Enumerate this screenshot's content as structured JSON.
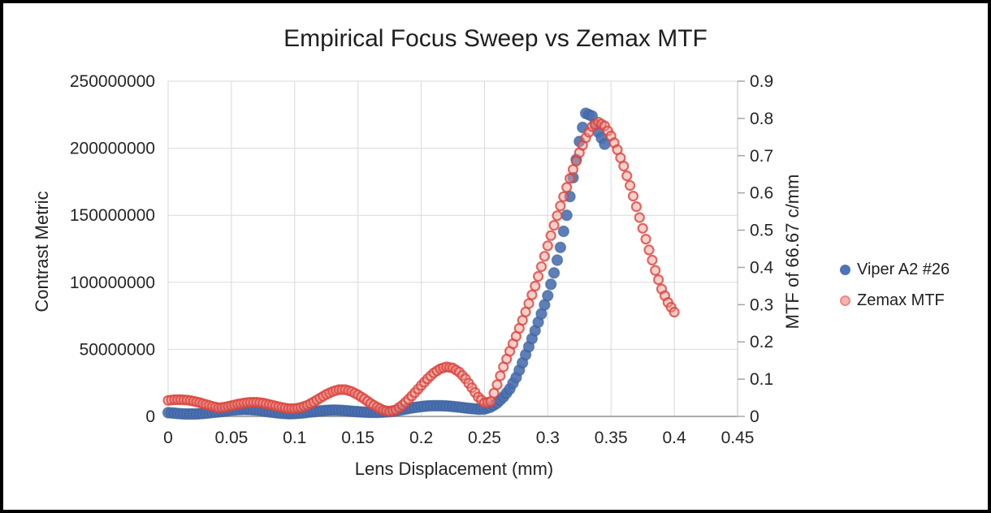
{
  "colors": {
    "background": "#FFFFFF",
    "frame_border": "#000000",
    "gridline": "#D9D9D9",
    "axis_line": "#ABABAB",
    "secondary_axis_line": "#C9C9C9",
    "tick_mark": "#A6A6A6",
    "tick_label": "#262626",
    "title_text": "#1F1F1F"
  },
  "chart_data": {
    "type": "scatter",
    "title": "Empirical Focus Sweep vs Zemax MTF",
    "grid": true,
    "x_axis": {
      "label": "Lens Displacement (mm)",
      "range": [
        0,
        0.45
      ],
      "ticks": [
        {
          "value": 0,
          "label": "0"
        },
        {
          "value": 0.05,
          "label": "0.05"
        },
        {
          "value": 0.1,
          "label": "0.1"
        },
        {
          "value": 0.15,
          "label": "0.15"
        },
        {
          "value": 0.2,
          "label": "0.2"
        },
        {
          "value": 0.25,
          "label": "0.25"
        },
        {
          "value": 0.3,
          "label": "0.3"
        },
        {
          "value": 0.35,
          "label": "0.35"
        },
        {
          "value": 0.4,
          "label": "0.4"
        },
        {
          "value": 0.45,
          "label": "0.45"
        }
      ]
    },
    "y_axis_left": {
      "label": "Contrast Metric",
      "range": [
        0,
        250000000
      ],
      "ticks": [
        {
          "value": 0,
          "label": "0"
        },
        {
          "value": 50000000,
          "label": "50000000"
        },
        {
          "value": 100000000,
          "label": "100000000"
        },
        {
          "value": 150000000,
          "label": "150000000"
        },
        {
          "value": 200000000,
          "label": "200000000"
        },
        {
          "value": 250000000,
          "label": "250000000"
        }
      ]
    },
    "y_axis_right": {
      "label": "MTF of 66.67 c/mm",
      "range": [
        0,
        0.9
      ],
      "ticks": [
        {
          "value": 0,
          "label": "0"
        },
        {
          "value": 0.1,
          "label": "0.1"
        },
        {
          "value": 0.2,
          "label": "0.2"
        },
        {
          "value": 0.3,
          "label": "0.3"
        },
        {
          "value": 0.4,
          "label": "0.4"
        },
        {
          "value": 0.5,
          "label": "0.5"
        },
        {
          "value": 0.6,
          "label": "0.6"
        },
        {
          "value": 0.7,
          "label": "0.7"
        },
        {
          "value": 0.8,
          "label": "0.8"
        },
        {
          "value": 0.9,
          "label": "0.9"
        }
      ]
    },
    "legend": {
      "position": "right",
      "entries": [
        {
          "name": "Viper A2 #26",
          "marker": {
            "fill": "#4C74B6",
            "border": "#4C74B6"
          }
        },
        {
          "name": "Zemax MTF",
          "marker": {
            "fill": "#F5B5B1",
            "border": "#E78B84"
          }
        }
      ]
    },
    "series": [
      {
        "name": "Viper A2 #26",
        "axis": "left",
        "x_start": 0,
        "x_step": 0.005,
        "marker": {
          "r": 6.5,
          "fill": "#4A71B3",
          "fill_opacity": 0.9,
          "stroke": "#3A5B92",
          "stroke_opacity": 0.55,
          "stroke_width": 1.4
        },
        "values": [
          2800000,
          2400000,
          2000000,
          1800000,
          1800000,
          2000000,
          2400000,
          2900000,
          3400000,
          4000000,
          4600000,
          5000000,
          5200000,
          5100000,
          4700000,
          4100000,
          3400000,
          2800000,
          2300000,
          2000000,
          2100000,
          2500000,
          3000000,
          3600000,
          4100000,
          4500000,
          4700000,
          4600000,
          4300000,
          3900000,
          3500000,
          3200000,
          3000000,
          3000000,
          3200000,
          3600000,
          4200000,
          5000000,
          5900000,
          6700000,
          7300000,
          7800000,
          8000000,
          8000000,
          7800000,
          7400000,
          6900000,
          6300000,
          5800000,
          5400000,
          5500000,
          7000000,
          10000000,
          14500000,
          20500000,
          29000000,
          40000000,
          52000000,
          64000000,
          76500000,
          90000000,
          107000000,
          126000000,
          150000000,
          178000000,
          205000000,
          226000000,
          224000000,
          212000000,
          203000000
        ]
      },
      {
        "name": "Zemax MTF",
        "axis": "right",
        "x_start": 0,
        "x_step": 0.005,
        "marker": {
          "r": 5.5,
          "fill": "#F2948D",
          "fill_opacity": 0.45,
          "stroke": "#D9453C",
          "stroke_opacity": 0.8,
          "stroke_width": 2.2
        },
        "values": [
          0.043,
          0.045,
          0.045,
          0.044,
          0.041,
          0.037,
          0.032,
          0.027,
          0.023,
          0.025,
          0.029,
          0.033,
          0.036,
          0.038,
          0.038,
          0.036,
          0.032,
          0.028,
          0.024,
          0.021,
          0.021,
          0.024,
          0.03,
          0.039,
          0.049,
          0.059,
          0.067,
          0.072,
          0.072,
          0.067,
          0.058,
          0.047,
          0.035,
          0.025,
          0.017,
          0.013,
          0.018,
          0.03,
          0.046,
          0.064,
          0.083,
          0.101,
          0.117,
          0.128,
          0.133,
          0.13,
          0.119,
          0.101,
          0.077,
          0.052,
          0.036,
          0.04,
          0.085,
          0.133,
          0.175,
          0.215,
          0.258,
          0.303,
          0.35,
          0.402,
          0.458,
          0.513,
          0.565,
          0.615,
          0.663,
          0.708,
          0.748,
          0.778,
          0.79,
          0.78,
          0.753,
          0.716,
          0.672,
          0.62,
          0.563,
          0.505,
          0.447,
          0.392,
          0.342,
          0.306,
          0.28
        ]
      }
    ]
  }
}
